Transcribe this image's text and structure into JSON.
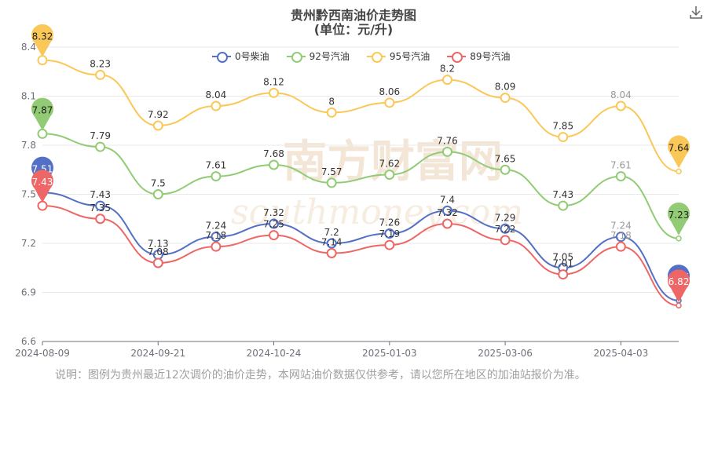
{
  "header": {
    "title": "贵州黔西南油价走势图",
    "subtitle": "(单位：元/升)"
  },
  "download_icon": "download-icon",
  "note": "说明：图例为贵州最近12次调价的油价走势，本网站油价数据仅供参考，请以您所在地区的加油站报价为准。",
  "watermark": {
    "cn": "南方财富网",
    "en": "southmoney.com"
  },
  "chart_data": {
    "type": "line",
    "title": "贵州黔西南油价走势图",
    "subtitle": "(单位：元/升)",
    "x_tick_labels": [
      "2024-08-09",
      "2024-09-21",
      "2024-10-24",
      "2025-01-03",
      "2025-03-06",
      "2025-04-03"
    ],
    "ylim": [
      6.6,
      8.4
    ],
    "y_ticks": [
      "6.6",
      "6.9",
      "7.2",
      "7.5",
      "7.8",
      "8.1",
      "8.4"
    ],
    "grid": true,
    "legend_position": "top",
    "series": [
      {
        "name": "0号柴油",
        "color": "#5470c6",
        "values": [
          7.51,
          7.43,
          7.13,
          7.24,
          7.32,
          7.2,
          7.26,
          7.4,
          7.29,
          7.05,
          7.24,
          6.85
        ]
      },
      {
        "name": "92号汽油",
        "color": "#91cc75",
        "values": [
          7.87,
          7.79,
          7.5,
          7.61,
          7.68,
          7.57,
          7.62,
          7.76,
          7.65,
          7.43,
          7.61,
          7.23
        ]
      },
      {
        "name": "95号汽油",
        "color": "#fac858",
        "values": [
          8.32,
          8.23,
          7.92,
          8.04,
          8.12,
          8,
          8.06,
          8.2,
          8.09,
          7.85,
          8.04,
          7.64
        ]
      },
      {
        "name": "89号汽油",
        "color": "#ee6666",
        "values": [
          7.43,
          7.35,
          7.08,
          7.18,
          7.25,
          7.14,
          7.19,
          7.32,
          7.22,
          7.01,
          7.18,
          6.82
        ]
      }
    ],
    "pins": {
      "first": [
        "7.51",
        "7.87",
        "8.32",
        "7.43"
      ],
      "last": [
        "6.85",
        "7.23",
        "7.64",
        "6.82"
      ]
    }
  }
}
